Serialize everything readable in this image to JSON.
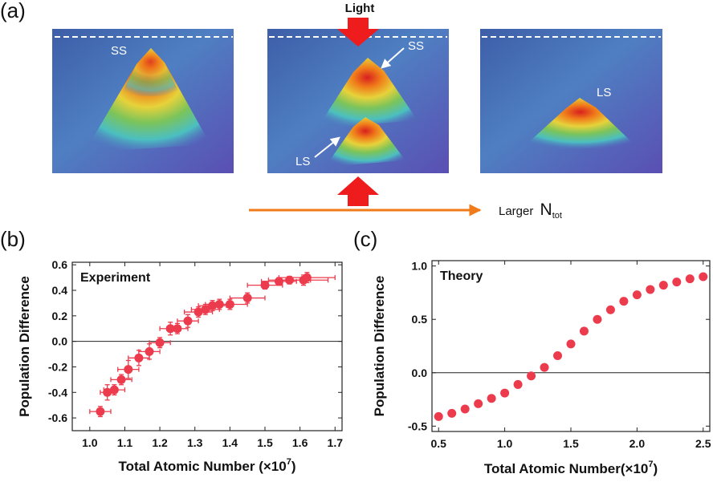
{
  "panel_a": {
    "label": "(a)",
    "light_label": "Light",
    "ss_label": "SS",
    "ls_label": "LS",
    "arrow_text": "Larger ",
    "n_symbol": "N",
    "n_sub": "tot",
    "colors": {
      "arrow": "#f07b18",
      "light": "#ee1c1c"
    }
  },
  "chart_data": [
    {
      "panel_label": "(b)",
      "type": "scatter",
      "annotation": "Experiment",
      "xlabel_main": "Total Atomic Number (×10",
      "xlabel_exp": "7",
      "xlabel_close": ")",
      "ylabel": "Population Difference",
      "xlim": [
        0.95,
        1.72
      ],
      "ylim": [
        -0.7,
        0.62
      ],
      "xticks": [
        "1.0",
        "1.1",
        "1.2",
        "1.3",
        "1.4",
        "1.5",
        "1.6",
        "1.7"
      ],
      "yticks": [
        "0.6",
        "0.4",
        "0.2",
        "0.0",
        "-0.2",
        "-0.4",
        "-0.6"
      ],
      "x": [
        1.03,
        1.05,
        1.07,
        1.09,
        1.11,
        1.14,
        1.17,
        1.2,
        1.23,
        1.25,
        1.28,
        1.31,
        1.33,
        1.35,
        1.37,
        1.4,
        1.45,
        1.5,
        1.54,
        1.57,
        1.61,
        1.62
      ],
      "y": [
        -0.55,
        -0.4,
        -0.38,
        -0.3,
        -0.22,
        -0.13,
        -0.08,
        -0.01,
        0.1,
        0.1,
        0.16,
        0.23,
        0.25,
        0.28,
        0.29,
        0.29,
        0.34,
        0.44,
        0.47,
        0.48,
        0.48,
        0.5
      ],
      "xerr": [
        0.03,
        0.02,
        0.03,
        0.03,
        0.03,
        0.03,
        0.03,
        0.03,
        0.03,
        0.03,
        0.03,
        0.04,
        0.04,
        0.04,
        0.04,
        0.05,
        0.05,
        0.05,
        0.05,
        0.06,
        0.07,
        0.08
      ],
      "yerr": [
        0.04,
        0.06,
        0.04,
        0.04,
        0.07,
        0.06,
        0.06,
        0.04,
        0.05,
        0.04,
        0.05,
        0.04,
        0.04,
        0.04,
        0.04,
        0.04,
        0.04,
        0.03,
        0.03,
        0.03,
        0.04,
        0.04
      ],
      "color": "#ec3b4c"
    },
    {
      "panel_label": "(c)",
      "type": "scatter",
      "annotation": "Theory",
      "xlabel_main": "Total Atomic Number(×10",
      "xlabel_exp": "7",
      "xlabel_close": ")",
      "ylabel": "Population Difference",
      "xlim": [
        0.45,
        2.55
      ],
      "ylim": [
        -0.55,
        1.05
      ],
      "xticks": [
        "0.5",
        "1.0",
        "1.5",
        "2.0",
        "2.5"
      ],
      "yticks": [
        "1.0",
        "0.5",
        "0.0",
        "-0.5"
      ],
      "x": [
        0.5,
        0.6,
        0.7,
        0.8,
        0.9,
        1.0,
        1.1,
        1.2,
        1.3,
        1.4,
        1.5,
        1.6,
        1.7,
        1.8,
        1.9,
        2.0,
        2.1,
        2.2,
        2.3,
        2.4,
        2.5
      ],
      "y": [
        -0.41,
        -0.38,
        -0.34,
        -0.29,
        -0.24,
        -0.19,
        -0.11,
        -0.03,
        0.05,
        0.16,
        0.27,
        0.39,
        0.5,
        0.59,
        0.67,
        0.73,
        0.78,
        0.82,
        0.85,
        0.88,
        0.9
      ],
      "color": "#ec3b4c"
    }
  ]
}
